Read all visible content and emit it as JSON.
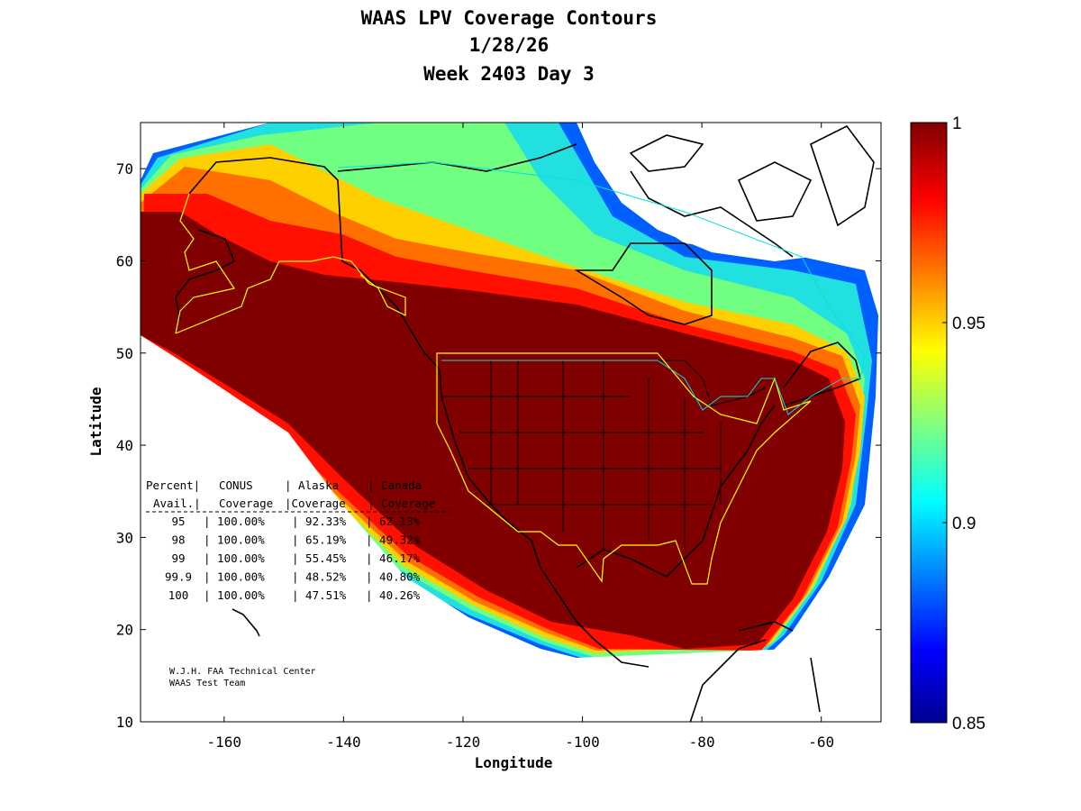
{
  "title": {
    "line1": "WAAS LPV Coverage Contours",
    "line2": "1/28/26",
    "line3": "Week 2403 Day 3"
  },
  "axes": {
    "xlabel": "Longitude",
    "ylabel": "Latitude",
    "xticks": [
      "-160",
      "-140",
      "-120",
      "-100",
      "-80",
      "-60"
    ],
    "yticks": [
      "70",
      "60",
      "50",
      "40",
      "30",
      "20",
      "10"
    ],
    "xlim": [
      -174,
      -50
    ],
    "ylim": [
      10,
      75
    ]
  },
  "colorbar": {
    "ticks": [
      "1",
      "0.95",
      "0.9",
      "0.85"
    ],
    "range": [
      0.85,
      1
    ],
    "colormap": "jet"
  },
  "table": {
    "header1": [
      "Percent|",
      "CONUS",
      "| Alaska",
      "| Canada"
    ],
    "header2": [
      "Avail.|",
      "Coverage",
      "|Coverage",
      "| Coverage"
    ],
    "rows": [
      {
        "pct": "95",
        "conus": "| 100.00%",
        "alaska": "| 92.33%",
        "canada": "| 62.13%"
      },
      {
        "pct": "98",
        "conus": "| 100.00%",
        "alaska": "| 65.19%",
        "canada": "| 49.32%"
      },
      {
        "pct": "99",
        "conus": "| 100.00%",
        "alaska": "| 55.45%",
        "canada": "| 46.17%"
      },
      {
        "pct": "99.9",
        "conus": "| 100.00%",
        "alaska": "| 48.52%",
        "canada": "| 40.80%"
      },
      {
        "pct": "100",
        "conus": "| 100.00%",
        "alaska": "| 47.51%",
        "canada": "| 40.26%"
      }
    ]
  },
  "credit": {
    "line1": "W.J.H. FAA Technical Center",
    "line2": "WAAS Test Team"
  },
  "colors": {
    "deep_red": "#800000",
    "outline": "#000000",
    "service_volume": "#ffff00",
    "border_cyan": "#00e0e0"
  }
}
